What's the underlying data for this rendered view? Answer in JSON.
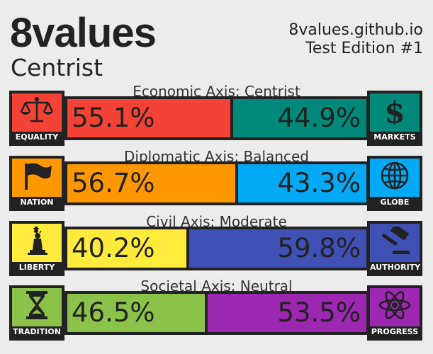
{
  "header": {
    "title": "8values",
    "ideology": "Centrist",
    "site": "8values.github.io",
    "edition": "Test Edition #1"
  },
  "axes": [
    {
      "label": "Economic Axis: Centrist",
      "left": {
        "name": "EQUALITY",
        "icon": "scales-icon",
        "value": 55.1,
        "text": "55.1%",
        "color": "#f44336"
      },
      "right": {
        "name": "MARKETS",
        "icon": "dollar-icon",
        "value": 44.9,
        "text": "44.9%",
        "color": "#00897b"
      }
    },
    {
      "label": "Diplomatic Axis: Balanced",
      "left": {
        "name": "NATION",
        "icon": "flag-icon",
        "value": 56.7,
        "text": "56.7%",
        "color": "#ff9800"
      },
      "right": {
        "name": "GLOBE",
        "icon": "globe-icon",
        "value": 43.3,
        "text": "43.3%",
        "color": "#03a9f4"
      }
    },
    {
      "label": "Civil Axis: Moderate",
      "left": {
        "name": "LIBERTY",
        "icon": "liberty-statue-icon",
        "value": 40.2,
        "text": "40.2%",
        "color": "#ffeb3b"
      },
      "right": {
        "name": "AUTHORITY",
        "icon": "gavel-icon",
        "value": 59.8,
        "text": "59.8%",
        "color": "#3f51b5"
      }
    },
    {
      "label": "Societal Axis: Neutral",
      "left": {
        "name": "TRADITION",
        "icon": "hourglass-icon",
        "value": 46.5,
        "text": "46.5%",
        "color": "#8bc34a"
      },
      "right": {
        "name": "PROGRESS",
        "icon": "atom-icon",
        "value": 53.5,
        "text": "53.5%",
        "color": "#9c27b0"
      }
    }
  ]
}
